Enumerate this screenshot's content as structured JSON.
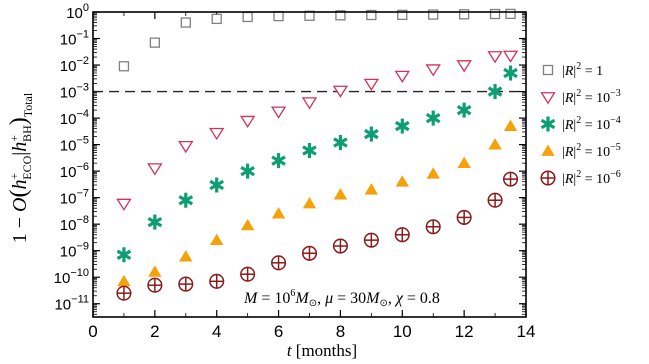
{
  "chart_data": {
    "type": "scatter",
    "title": "",
    "xlabel": "t [months]",
    "ylabel": "1 − O(h⁺ECO|h⁺BH)Total",
    "ylabel_parts": {
      "lead": "1 − ",
      "O": "O",
      "open": "(",
      "h1": "h",
      "sup1": "+",
      "sub1": "ECO",
      "bar": "|",
      "h2": "h",
      "sup2": "+",
      "sub2": "BH",
      "close": ")",
      "subtot": "Total"
    },
    "xlim": [
      0,
      14
    ],
    "ylim_log10": [
      -11.5,
      0
    ],
    "yscale": "log",
    "x_ticks": [
      0,
      2,
      4,
      6,
      8,
      10,
      12,
      14
    ],
    "y_ticks_exponents": [
      0,
      -1,
      -2,
      -3,
      -4,
      -5,
      -6,
      -7,
      -8,
      -9,
      -10,
      -11
    ],
    "y_tick_labels": [
      "10^0",
      "10^-1",
      "10^-2",
      "10^-3",
      "10^-4",
      "10^-5",
      "10^-6",
      "10^-7",
      "10^-8",
      "10^-9",
      "10^-10",
      "10^-11"
    ],
    "threshold_line": 0.001,
    "annotation": "M = 10⁶M⊙,  μ = 30M⊙,  χ = 0.8",
    "annotation_parts": {
      "M": "M",
      "eq1": " = 10",
      "exp1": "6",
      "M2": "M",
      "sun1": "⊙",
      "comma1": ",  ",
      "mu": "μ",
      "eq2": " = 30",
      "M3": "M",
      "sun2": "⊙",
      "comma2": ",  ",
      "chi": "χ",
      "eq3": " = 0.8"
    },
    "legend_position": "right",
    "series": [
      {
        "name": "|R|² = 1",
        "legend_text": "= 1",
        "marker": "square-open",
        "color": "#808080",
        "x": [
          1,
          2,
          3,
          4,
          5,
          6,
          7,
          8,
          9,
          10,
          11,
          12,
          13,
          13.5
        ],
        "y": [
          0.009,
          0.07,
          0.4,
          0.55,
          0.65,
          0.7,
          0.72,
          0.75,
          0.77,
          0.78,
          0.8,
          0.82,
          0.84,
          0.85
        ]
      },
      {
        "name": "|R|² = 10⁻³",
        "legend_text": "= 10",
        "legend_exp": "−3",
        "marker": "triangle-down-open",
        "color": "#d0325a",
        "x": [
          1,
          2,
          3,
          4,
          5,
          6,
          7,
          8,
          9,
          10,
          11,
          12,
          13,
          13.5
        ],
        "y": [
          6e-08,
          1.3e-06,
          9e-06,
          2.8e-05,
          8e-05,
          0.00018,
          0.0004,
          0.0011,
          0.002,
          0.004,
          0.007,
          0.01,
          0.022,
          0.023
        ]
      },
      {
        "name": "|R|² = 10⁻⁴",
        "legend_text": "= 10",
        "legend_exp": "−4",
        "marker": "star",
        "color": "#0e9e73",
        "x": [
          1,
          2,
          3,
          4,
          5,
          6,
          7,
          8,
          9,
          10,
          11,
          12,
          13,
          13.5
        ],
        "y": [
          7e-10,
          1.2e-08,
          8e-08,
          3e-07,
          1e-06,
          2.5e-06,
          6e-06,
          1.2e-05,
          2.5e-05,
          5e-05,
          0.0001,
          0.0002,
          0.001,
          0.005
        ]
      },
      {
        "name": "|R|² = 10⁻⁵",
        "legend_text": "= 10",
        "legend_exp": "−5",
        "marker": "triangle-up-filled",
        "color": "#f5a20a",
        "x": [
          1,
          2,
          3,
          4,
          5,
          6,
          7,
          8,
          9,
          10,
          11,
          12,
          13,
          13.5
        ],
        "y": [
          7e-11,
          1.6e-10,
          6e-10,
          2.5e-09,
          9e-09,
          2.5e-08,
          6e-08,
          1.3e-07,
          2e-07,
          4e-07,
          8e-07,
          2e-06,
          1e-05,
          5e-05
        ]
      },
      {
        "name": "|R|² = 10⁻⁶",
        "legend_text": "= 10",
        "legend_exp": "−6",
        "marker": "circle-plus",
        "color": "#8b1a1a",
        "x": [
          1,
          2,
          3,
          4,
          5,
          6,
          7,
          8,
          9,
          10,
          11,
          12,
          13,
          13.5
        ],
        "y": [
          2.5e-11,
          5e-11,
          5.5e-11,
          7e-11,
          1.3e-10,
          3.5e-10,
          8e-10,
          1.5e-09,
          2.5e-09,
          4e-09,
          8e-09,
          1.8e-08,
          8e-08,
          5e-07
        ]
      }
    ]
  }
}
